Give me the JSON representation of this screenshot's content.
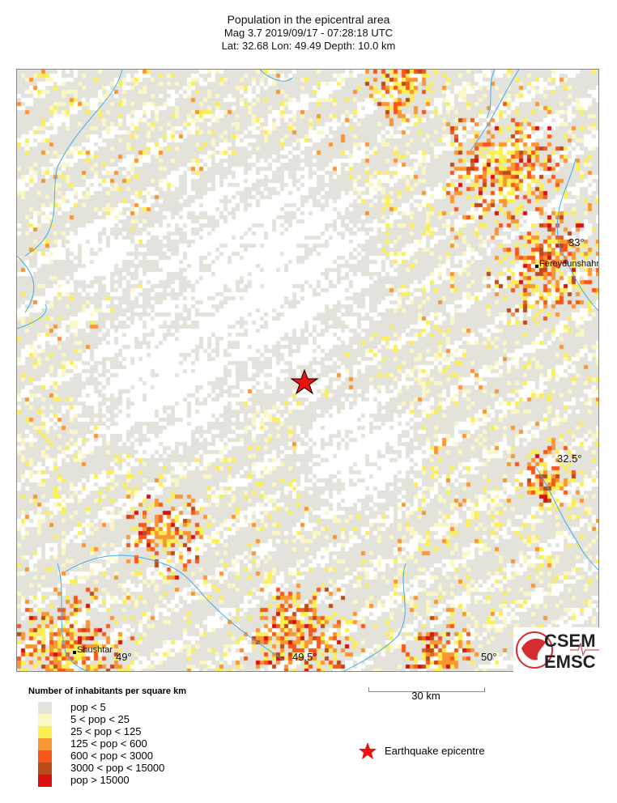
{
  "header": {
    "title": "Population in the epicentral area",
    "event_line": "Mag 3.7  2019/09/17 - 07:28:18 UTC",
    "location_line": "Lat: 32.68    Lon:  49.49     Depth:  10.0 km"
  },
  "event": {
    "magnitude": 3.7,
    "date": "2019/09/17",
    "time": "07:28:18 UTC",
    "lat": 32.68,
    "lon": 49.49,
    "depth_km": 10.0
  },
  "map": {
    "lon_ticks": [
      "49°",
      "49.5°",
      "50°"
    ],
    "lat_ticks": [
      "33°",
      "32.5°"
    ],
    "cities": [
      {
        "name": "Fereydunshahr"
      },
      {
        "name": "Shushtar"
      }
    ],
    "river_color": "#44aaee",
    "epicentre_color": "#ee1111"
  },
  "legend": {
    "title": "Number of inhabitants per square km",
    "classes": [
      {
        "label": "pop < 5",
        "color": "#e3e3dc"
      },
      {
        "label": "5 < pop < 25",
        "color": "#fbf7c4"
      },
      {
        "label": "25 < pop < 125",
        "color": "#fbef55"
      },
      {
        "label": "125 < pop < 600",
        "color": "#f99632"
      },
      {
        "label": "600 < pop < 3000",
        "color": "#f9561c"
      },
      {
        "label": "3000 < pop < 15000",
        "color": "#bb4c1a"
      },
      {
        "label": "pop > 15000",
        "color": "#d81010"
      }
    ],
    "epicentre_label": "Earthquake epicentre"
  },
  "scale_bar": {
    "label": "30 km"
  },
  "logo": {
    "top": "CSEM",
    "bottom": "EMSC",
    "color": "#d62e2e"
  }
}
